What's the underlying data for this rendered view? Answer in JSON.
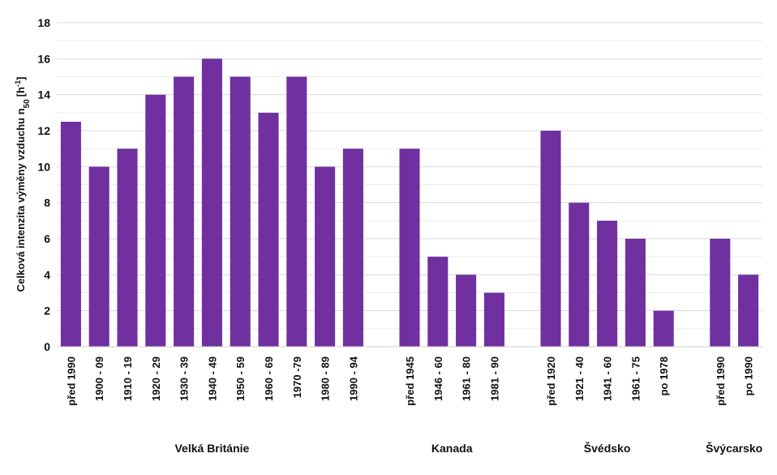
{
  "chart_data": {
    "type": "bar",
    "ylabel": "Celková intenzita výměny vzduchu n",
    "ylabel_subscript": "50",
    "ylabel_unit": "[h",
    "ylabel_unit_sup": "-1",
    "ylabel_unit_close": "]",
    "ylim": [
      0,
      18
    ],
    "yticks": [
      "0",
      "2",
      "4",
      "6",
      "8",
      "10",
      "12",
      "14",
      "16",
      "18"
    ],
    "grid": true,
    "bar_color": "#7030A0",
    "groups": [
      {
        "name": "Velká Británie",
        "categories": [
          "před 1990",
          "1900 - 09",
          "1910 - 19",
          "1920 - 29",
          "1930 - 39",
          "1940 - 49",
          "1950 - 59",
          "1960 - 69",
          "1970 -79",
          "1980 - 89",
          "1990 - 94"
        ],
        "values": [
          12.5,
          10,
          11,
          14,
          15,
          16,
          15,
          13,
          15,
          10,
          11
        ]
      },
      {
        "name": "Kanada",
        "categories": [
          "před 1945",
          "1946 - 60",
          "1961 - 80",
          "1981 - 90"
        ],
        "values": [
          11,
          5,
          4,
          3
        ]
      },
      {
        "name": "Švédsko",
        "categories": [
          "před 1920",
          "1921 - 40",
          "1941 - 60",
          "1961 - 75",
          "po 1978"
        ],
        "values": [
          12,
          8,
          7,
          6,
          2
        ]
      },
      {
        "name": "Švýcarsko",
        "categories": [
          "před 1990",
          "po 1990"
        ],
        "values": [
          6,
          4
        ]
      }
    ]
  }
}
